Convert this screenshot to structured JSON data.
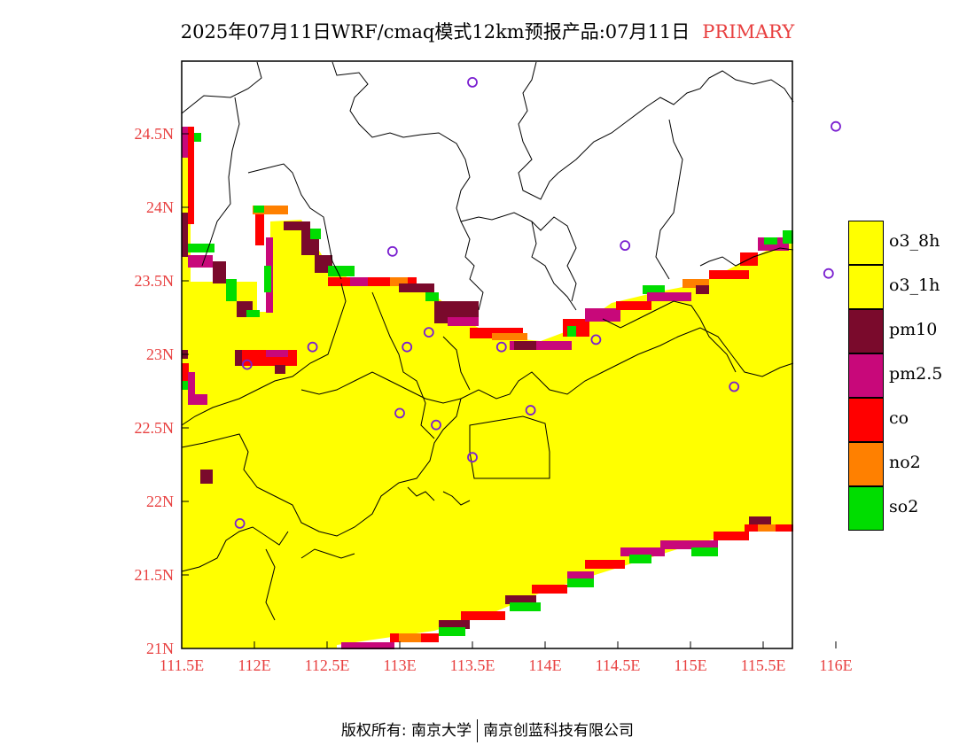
{
  "title": {
    "main": "2025年07月11日WRF/cmaq模式12km预报产品:07月11日",
    "highlight": "PRIMARY"
  },
  "footer": {
    "left": "版权所有: 南京大学",
    "right": "南京创蓝科技有限公司"
  },
  "axes": {
    "x_ticks": [
      "111.5E",
      "112E",
      "112.5E",
      "113E",
      "113.5E",
      "114E",
      "114.5E",
      "115E",
      "115.5E",
      "116E"
    ],
    "y_ticks": [
      "24.5N",
      "24N",
      "23.5N",
      "23N",
      "22.5N",
      "22N",
      "21.5N",
      "21N"
    ],
    "axis_color": "#e84040"
  },
  "legend": [
    {
      "label": "o3_8h",
      "color": "#ffff00"
    },
    {
      "label": "o3_1h",
      "color": "#ffff00"
    },
    {
      "label": "pm10",
      "color": "#7a0a2c"
    },
    {
      "label": "pm2.5",
      "color": "#c8087a"
    },
    {
      "label": "co",
      "color": "#ff0000"
    },
    {
      "label": "no2",
      "color": "#ff8000"
    },
    {
      "label": "so2",
      "color": "#00dd00"
    }
  ],
  "stations": [
    {
      "lon": 113.5,
      "lat": 24.85
    },
    {
      "lon": 116.0,
      "lat": 24.55
    },
    {
      "lon": 112.95,
      "lat": 23.7
    },
    {
      "lon": 114.55,
      "lat": 23.74
    },
    {
      "lon": 115.95,
      "lat": 23.55
    },
    {
      "lon": 113.2,
      "lat": 23.15
    },
    {
      "lon": 112.4,
      "lat": 23.05
    },
    {
      "lon": 113.05,
      "lat": 23.05
    },
    {
      "lon": 113.7,
      "lat": 23.05
    },
    {
      "lon": 114.35,
      "lat": 23.1
    },
    {
      "lon": 111.95,
      "lat": 22.93
    },
    {
      "lon": 115.3,
      "lat": 22.78
    },
    {
      "lon": 113.0,
      "lat": 22.6
    },
    {
      "lon": 113.25,
      "lat": 22.52
    },
    {
      "lon": 113.9,
      "lat": 22.62
    },
    {
      "lon": 113.5,
      "lat": 22.3
    },
    {
      "lon": 111.9,
      "lat": 21.85
    }
  ]
}
